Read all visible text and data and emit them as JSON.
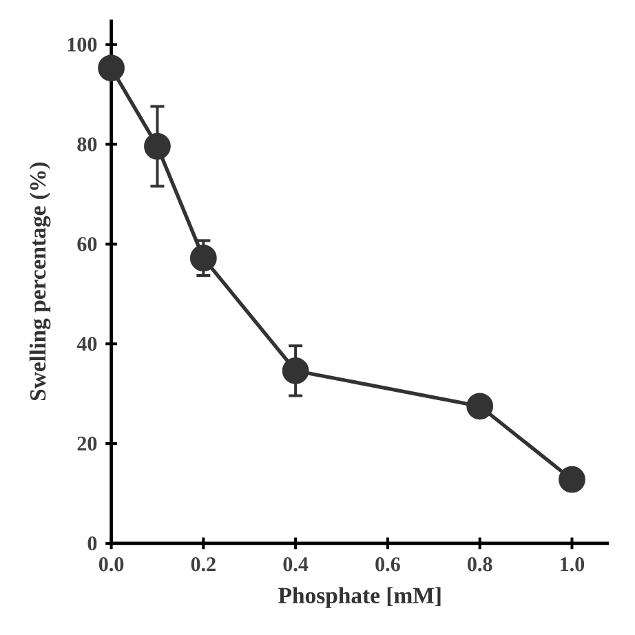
{
  "chart_data": {
    "type": "line",
    "xlabel": "Phosphate [mM]",
    "ylabel": "Swelling percentage (%)",
    "x": [
      0.0,
      0.1,
      0.2,
      0.4,
      0.8,
      1.0
    ],
    "series": [
      {
        "color": "#333333",
        "values": [
          95.3,
          79.6,
          57.2,
          34.6,
          27.5,
          12.8
        ],
        "errors": [
          null,
          8,
          3.5,
          5,
          null,
          null
        ]
      }
    ],
    "xlim": [
      0,
      1.08
    ],
    "ylim": [
      0,
      105
    ],
    "xticks": [
      {
        "value": 0,
        "label": "0.0"
      },
      {
        "value": 0.2,
        "label": "0.2"
      },
      {
        "value": 0.4,
        "label": "0.4"
      },
      {
        "value": 0.6,
        "label": "0.6"
      },
      {
        "value": 0.8,
        "label": "0.8"
      },
      {
        "value": 1.0,
        "label": "1.0"
      }
    ],
    "yticks": [
      0,
      20,
      40,
      60,
      80,
      100
    ],
    "grid": false,
    "marker": "circle",
    "line_style": "solid"
  }
}
